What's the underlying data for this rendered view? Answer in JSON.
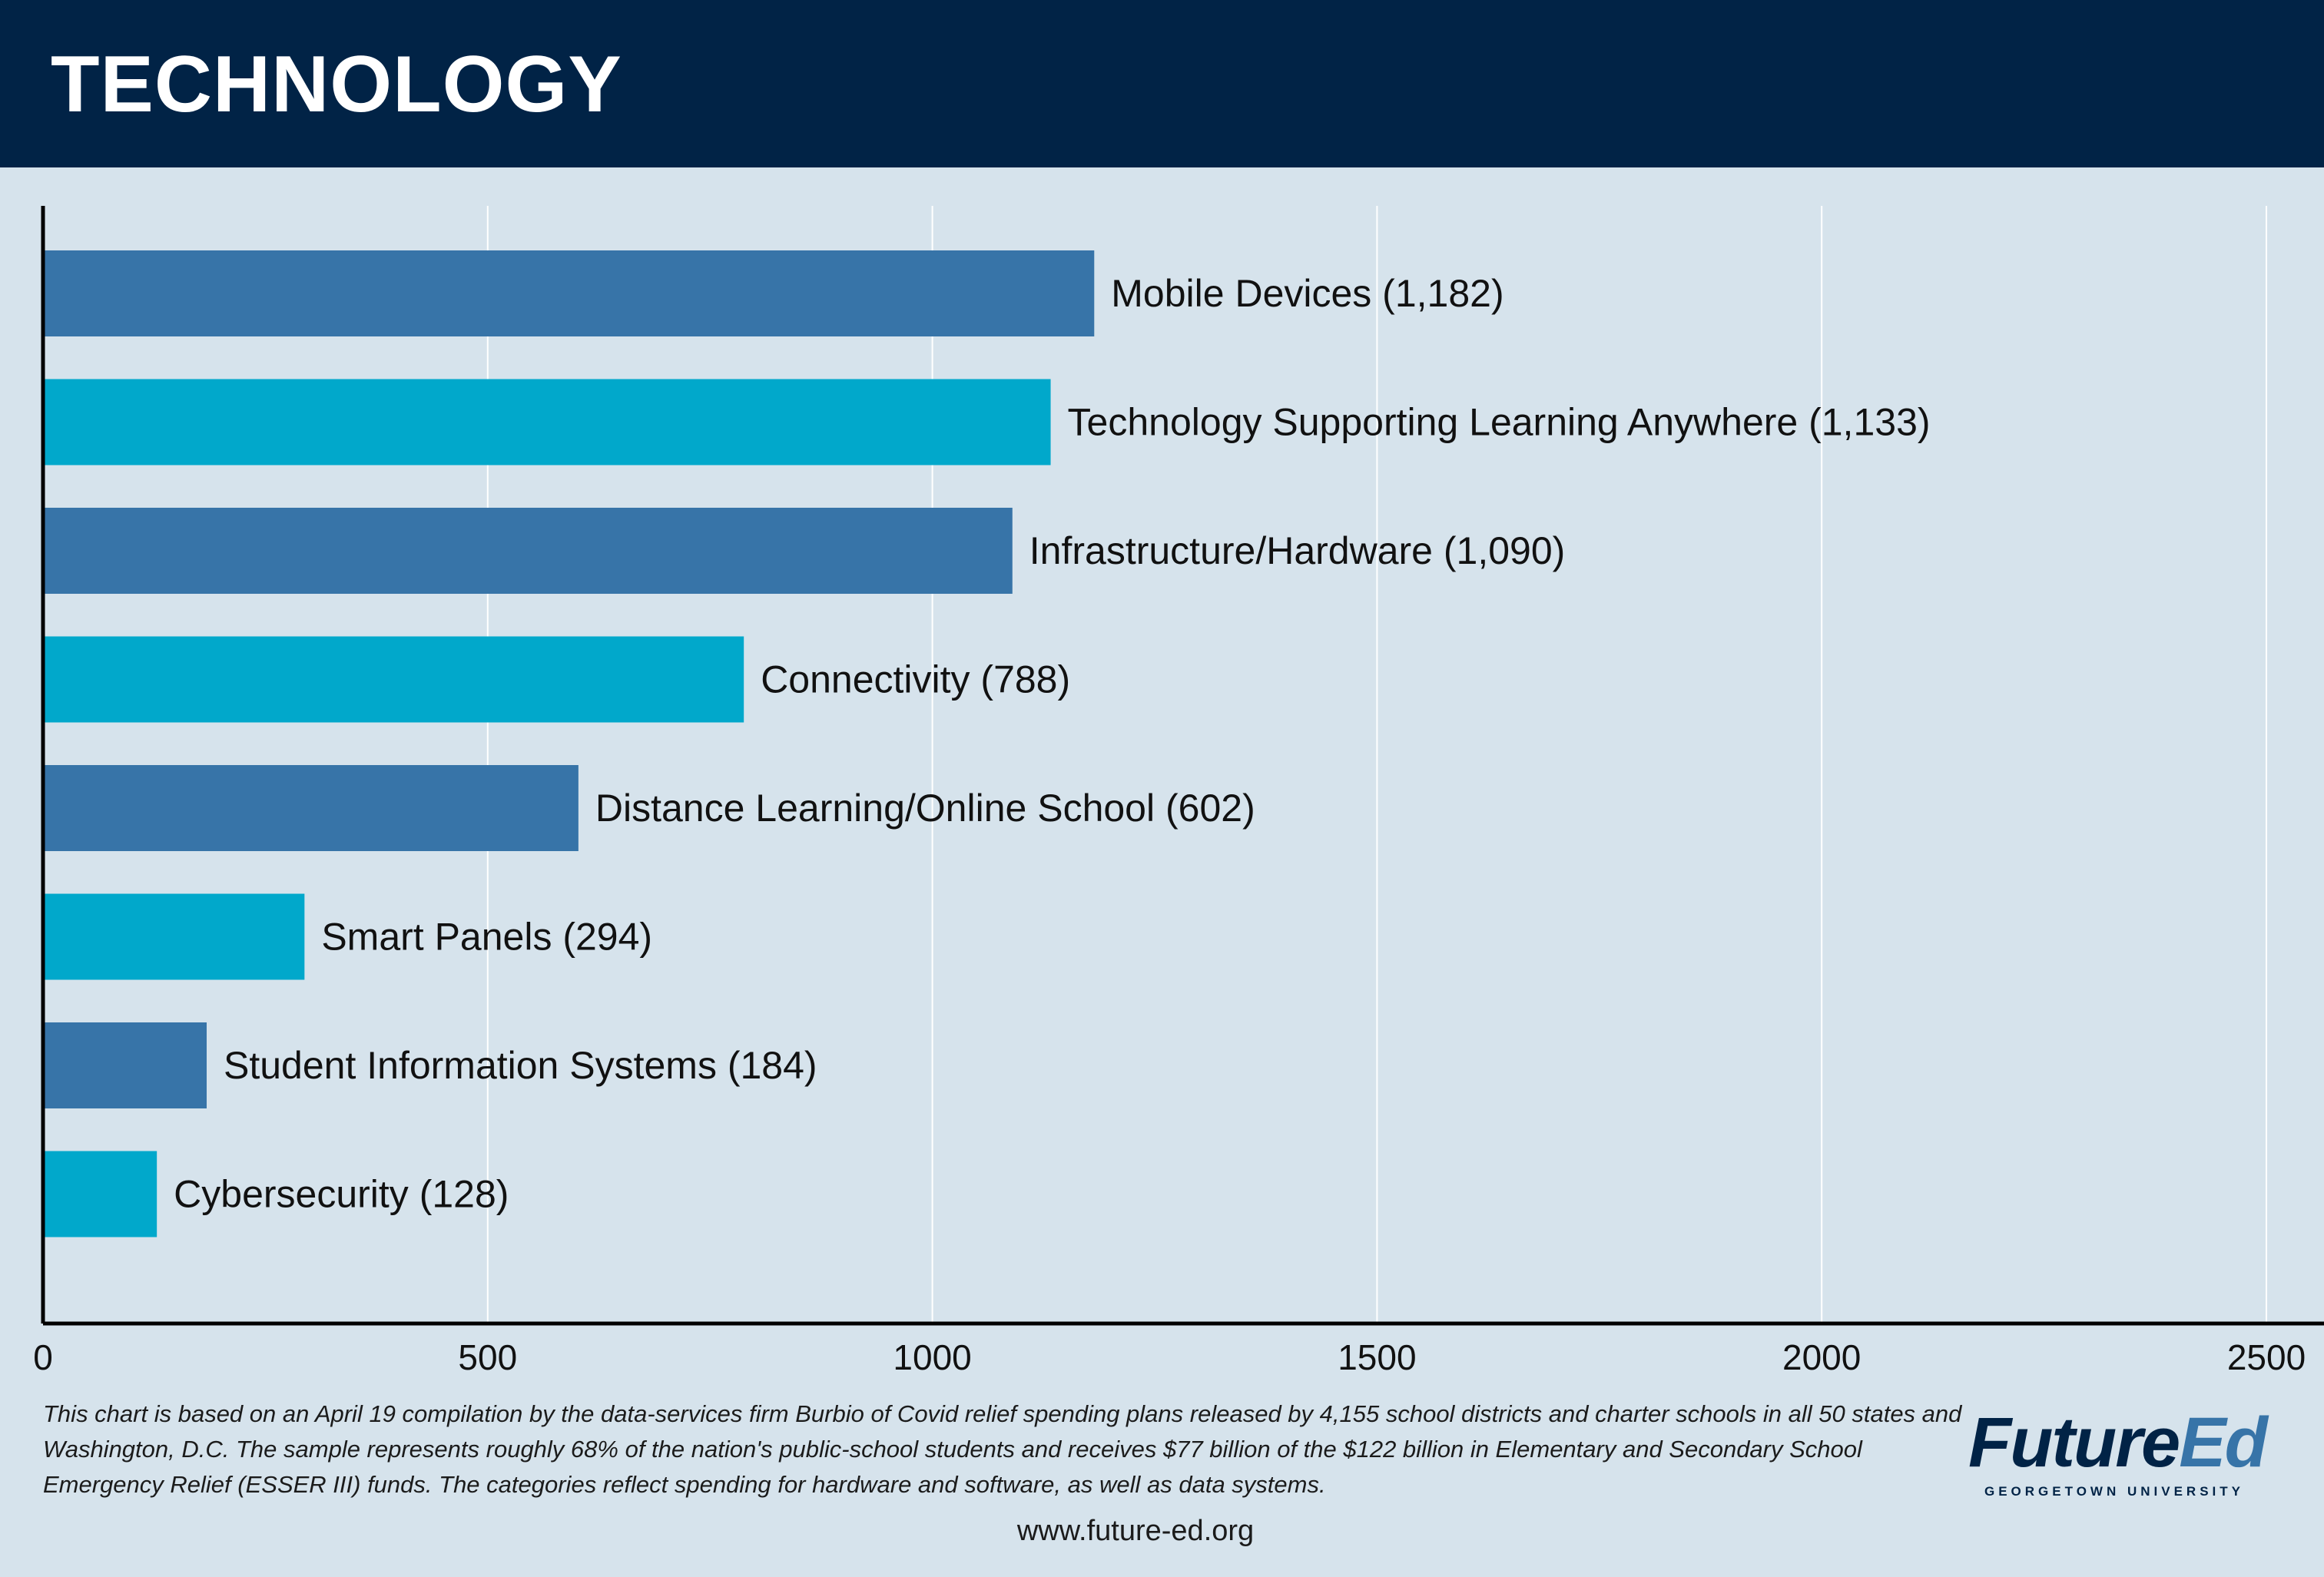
{
  "header": {
    "title": "TECHNOLOGY"
  },
  "chart_data": {
    "type": "bar",
    "orientation": "horizontal",
    "title": "",
    "xlabel": "",
    "ylabel": "",
    "xlim": [
      0,
      2500
    ],
    "xticks": [
      0,
      500,
      1000,
      1500,
      2000,
      2500
    ],
    "grid": true,
    "categories": [
      "Mobile Devices",
      "Technology Supporting Learning Anywhere",
      "Infrastructure/Hardware",
      "Connectivity",
      "Distance Learning/Online School",
      "Smart Panels",
      "Student Information Systems",
      "Cybersecurity"
    ],
    "values": [
      1182,
      1133,
      1090,
      788,
      602,
      294,
      184,
      128
    ],
    "data_labels": [
      "Mobile Devices (1,182)",
      "Technology Supporting Learning Anywhere (1,133)",
      "Infrastructure/Hardware (1,090)",
      "Connectivity (788)",
      "Distance Learning/Online School (602)",
      "Smart Panels (294)",
      "Student Information Systems (184)",
      "Cybersecurity (128)"
    ],
    "colors": [
      "#3774a8",
      "#01a8cb"
    ]
  },
  "footer": {
    "note": "This chart is based on an April 19 compilation by the data-services firm Burbio of Covid relief spending plans released by 4,155 school districts and charter schools in all 50 states and Washington, D.C. The sample represents roughly 68% of the nation's public-school students and receives $77 billion of the $122 billion in Elementary and Secondary School Emergency Relief (ESSER III) funds. The categories reflect spending for hardware and software, as well as data systems.",
    "url": "www.future-ed.org"
  },
  "logo": {
    "part1": "Future",
    "part2": "Ed",
    "subtitle": "GEORGETOWN UNIVERSITY",
    "color1": "#012346",
    "color2": "#3774a8"
  }
}
